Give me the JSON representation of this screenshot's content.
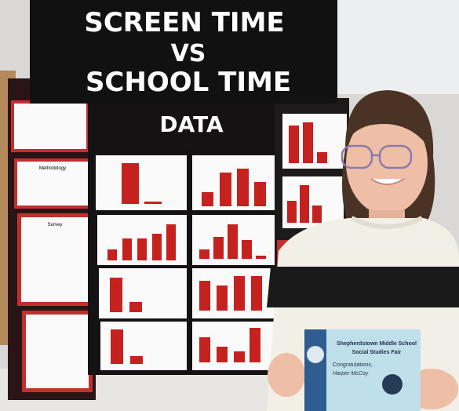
{
  "board": {
    "title_lines": [
      "SCREEN TIME",
      "VS",
      "SCHOOL TIME"
    ],
    "section": "DATA",
    "panels": [
      "Methodology",
      "Survey"
    ]
  },
  "certificate": {
    "school": "Shepherdstown Middle School",
    "event": "Social Studies Fair",
    "greeting": "Congratulations,",
    "name": "Harper McCoy"
  }
}
